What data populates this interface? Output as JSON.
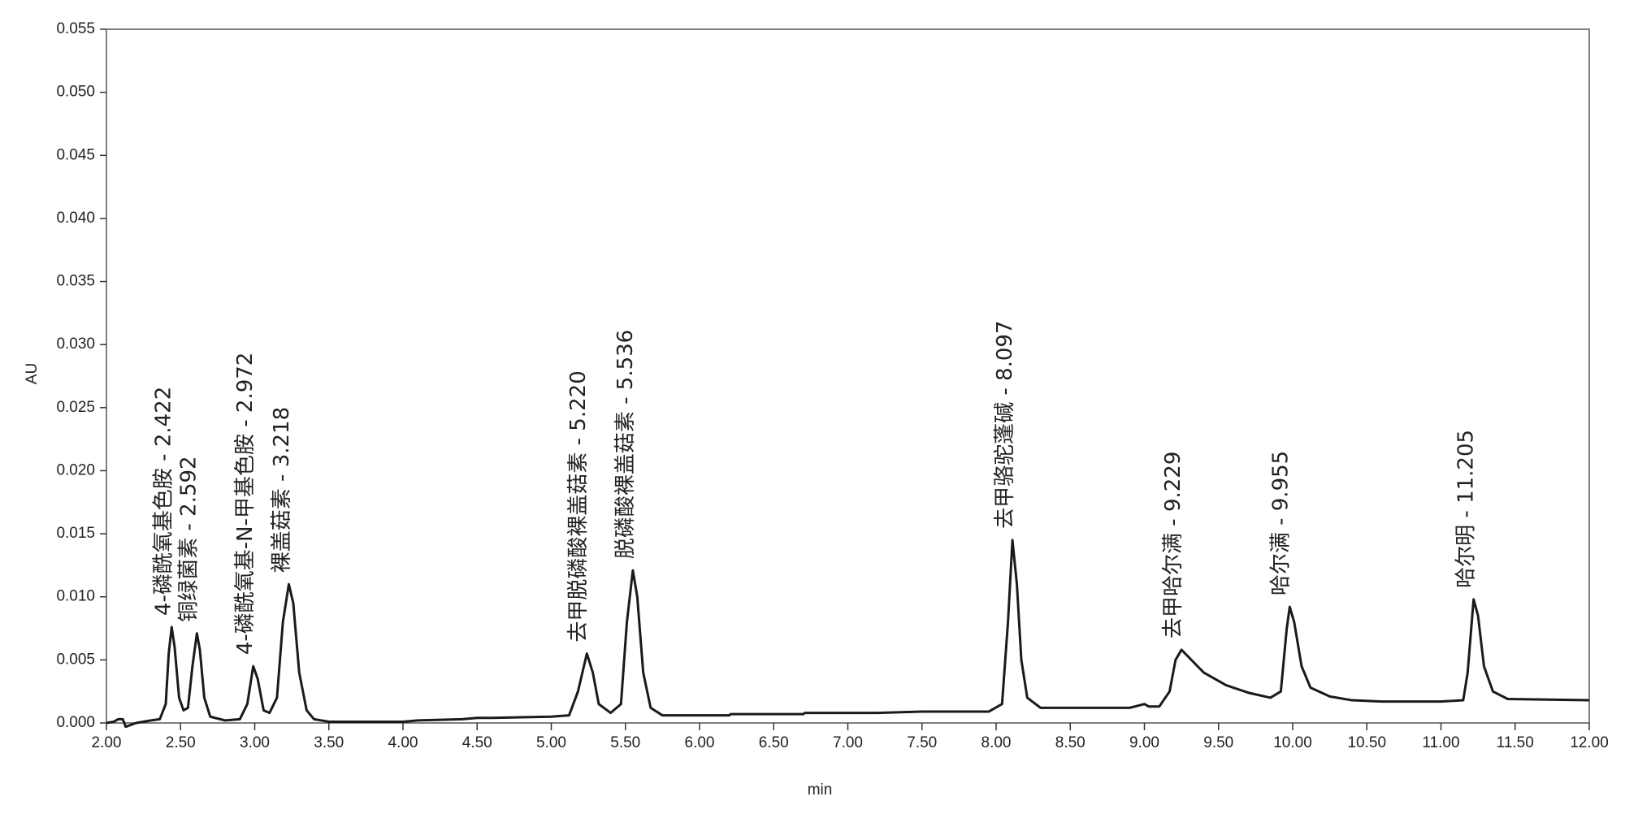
{
  "chart_data": {
    "type": "line",
    "xlabel": "min",
    "ylabel": "AU",
    "color": "#1a1a1a",
    "xlim": [
      2,
      12
    ],
    "ylim": [
      0,
      0.055
    ],
    "xticks": [
      {
        "value": 2,
        "label": "2.00"
      },
      {
        "value": 2.5,
        "label": "2.50"
      },
      {
        "value": 3,
        "label": "3.00"
      },
      {
        "value": 3.5,
        "label": "3.50"
      },
      {
        "value": 4,
        "label": "4.00"
      },
      {
        "value": 4.5,
        "label": "4.50"
      },
      {
        "value": 5,
        "label": "5.00"
      },
      {
        "value": 5.5,
        "label": "5.50"
      },
      {
        "value": 6,
        "label": "6.00"
      },
      {
        "value": 6.5,
        "label": "6.50"
      },
      {
        "value": 7,
        "label": "7.00"
      },
      {
        "value": 7.5,
        "label": "7.50"
      },
      {
        "value": 8,
        "label": "8.00"
      },
      {
        "value": 8.5,
        "label": "8.50"
      },
      {
        "value": 9,
        "label": "9.00"
      },
      {
        "value": 9.5,
        "label": "9.50"
      },
      {
        "value": 10,
        "label": "10.00"
      },
      {
        "value": 10.5,
        "label": "10.50"
      },
      {
        "value": 11,
        "label": "11.00"
      },
      {
        "value": 11.5,
        "label": "11.50"
      },
      {
        "value": 12,
        "label": "12.00"
      }
    ],
    "yticks": [
      {
        "value": 0,
        "label": "0.000"
      },
      {
        "value": 0.005,
        "label": "0.005"
      },
      {
        "value": 0.01,
        "label": "0.010"
      },
      {
        "value": 0.015,
        "label": "0.015"
      },
      {
        "value": 0.02,
        "label": "0.020"
      },
      {
        "value": 0.025,
        "label": "0.025"
      },
      {
        "value": 0.03,
        "label": "0.030"
      },
      {
        "value": 0.035,
        "label": "0.035"
      },
      {
        "value": 0.04,
        "label": "0.040"
      },
      {
        "value": 0.045,
        "label": "0.045"
      },
      {
        "value": 0.05,
        "label": "0.050"
      },
      {
        "value": 0.055,
        "label": "0.055"
      }
    ],
    "x": [
      2.0,
      2.05,
      2.08,
      2.11,
      2.13,
      2.2,
      2.3,
      2.36,
      2.4,
      2.42,
      2.44,
      2.46,
      2.49,
      2.52,
      2.55,
      2.58,
      2.61,
      2.63,
      2.66,
      2.7,
      2.8,
      2.9,
      2.95,
      2.99,
      3.02,
      3.06,
      3.1,
      3.15,
      3.19,
      3.23,
      3.26,
      3.3,
      3.35,
      3.4,
      3.5,
      3.8,
      4.0,
      4.1,
      4.4,
      4.5,
      4.6,
      5.0,
      5.12,
      5.18,
      5.24,
      5.28,
      5.32,
      5.4,
      5.47,
      5.51,
      5.55,
      5.58,
      5.62,
      5.67,
      5.75,
      6.2,
      6.21,
      6.7,
      6.71,
      7.2,
      7.5,
      7.95,
      8.04,
      8.08,
      8.11,
      8.14,
      8.17,
      8.21,
      8.3,
      8.9,
      9.0,
      9.03,
      9.1,
      9.17,
      9.21,
      9.25,
      9.3,
      9.4,
      9.55,
      9.7,
      9.85,
      9.92,
      9.96,
      9.98,
      10.01,
      10.06,
      10.12,
      10.25,
      10.4,
      10.6,
      11.0,
      11.15,
      11.18,
      11.22,
      11.25,
      11.29,
      11.35,
      11.45,
      12.0
    ],
    "values": [
      0.0,
      0.0001,
      0.0003,
      0.0003,
      -0.0003,
      0.0,
      0.0002,
      0.0003,
      0.0015,
      0.0055,
      0.0076,
      0.006,
      0.002,
      0.001,
      0.0012,
      0.0045,
      0.0071,
      0.0058,
      0.002,
      0.0005,
      0.0002,
      0.0003,
      0.0015,
      0.0045,
      0.0035,
      0.001,
      0.0008,
      0.002,
      0.008,
      0.011,
      0.0095,
      0.004,
      0.001,
      0.0003,
      0.0001,
      0.0001,
      0.0001,
      0.0002,
      0.0003,
      0.0004,
      0.0004,
      0.0005,
      0.0006,
      0.0025,
      0.0055,
      0.004,
      0.0015,
      0.0008,
      0.0015,
      0.008,
      0.0121,
      0.01,
      0.004,
      0.0012,
      0.0006,
      0.0006,
      0.0007,
      0.0007,
      0.0008,
      0.0008,
      0.0009,
      0.0009,
      0.0015,
      0.008,
      0.0145,
      0.011,
      0.005,
      0.002,
      0.0012,
      0.0012,
      0.0015,
      0.0013,
      0.0013,
      0.0025,
      0.005,
      0.0058,
      0.0052,
      0.004,
      0.003,
      0.0024,
      0.002,
      0.0025,
      0.0075,
      0.0092,
      0.008,
      0.0045,
      0.0028,
      0.0021,
      0.0018,
      0.0017,
      0.0017,
      0.0018,
      0.004,
      0.0098,
      0.0085,
      0.0045,
      0.0025,
      0.0019,
      0.0018
    ],
    "annotations": [
      {
        "text": "4-磷酰氧基色胺 - 2.422",
        "x": 2.422
      },
      {
        "text": "铜绿菌素 - 2.592",
        "x": 2.592
      },
      {
        "text": "4-磷酰氧基-N-甲基色胺 - 2.972",
        "x": 2.972
      },
      {
        "text": "裸盖菇素 - 3.218",
        "x": 3.218
      },
      {
        "text": "去甲脱磷酸裸盖菇素 - 5.220",
        "x": 5.22
      },
      {
        "text": "脱磷酸裸盖菇素 - 5.536",
        "x": 5.536
      },
      {
        "text": "去甲骆驼蓬碱 - 8.097",
        "x": 8.097
      },
      {
        "text": "去甲哈尔满 - 9.229",
        "x": 9.229
      },
      {
        "text": "哈尔满 - 9.955",
        "x": 9.955
      },
      {
        "text": "哈尔明 - 11.205",
        "x": 11.205
      }
    ]
  }
}
